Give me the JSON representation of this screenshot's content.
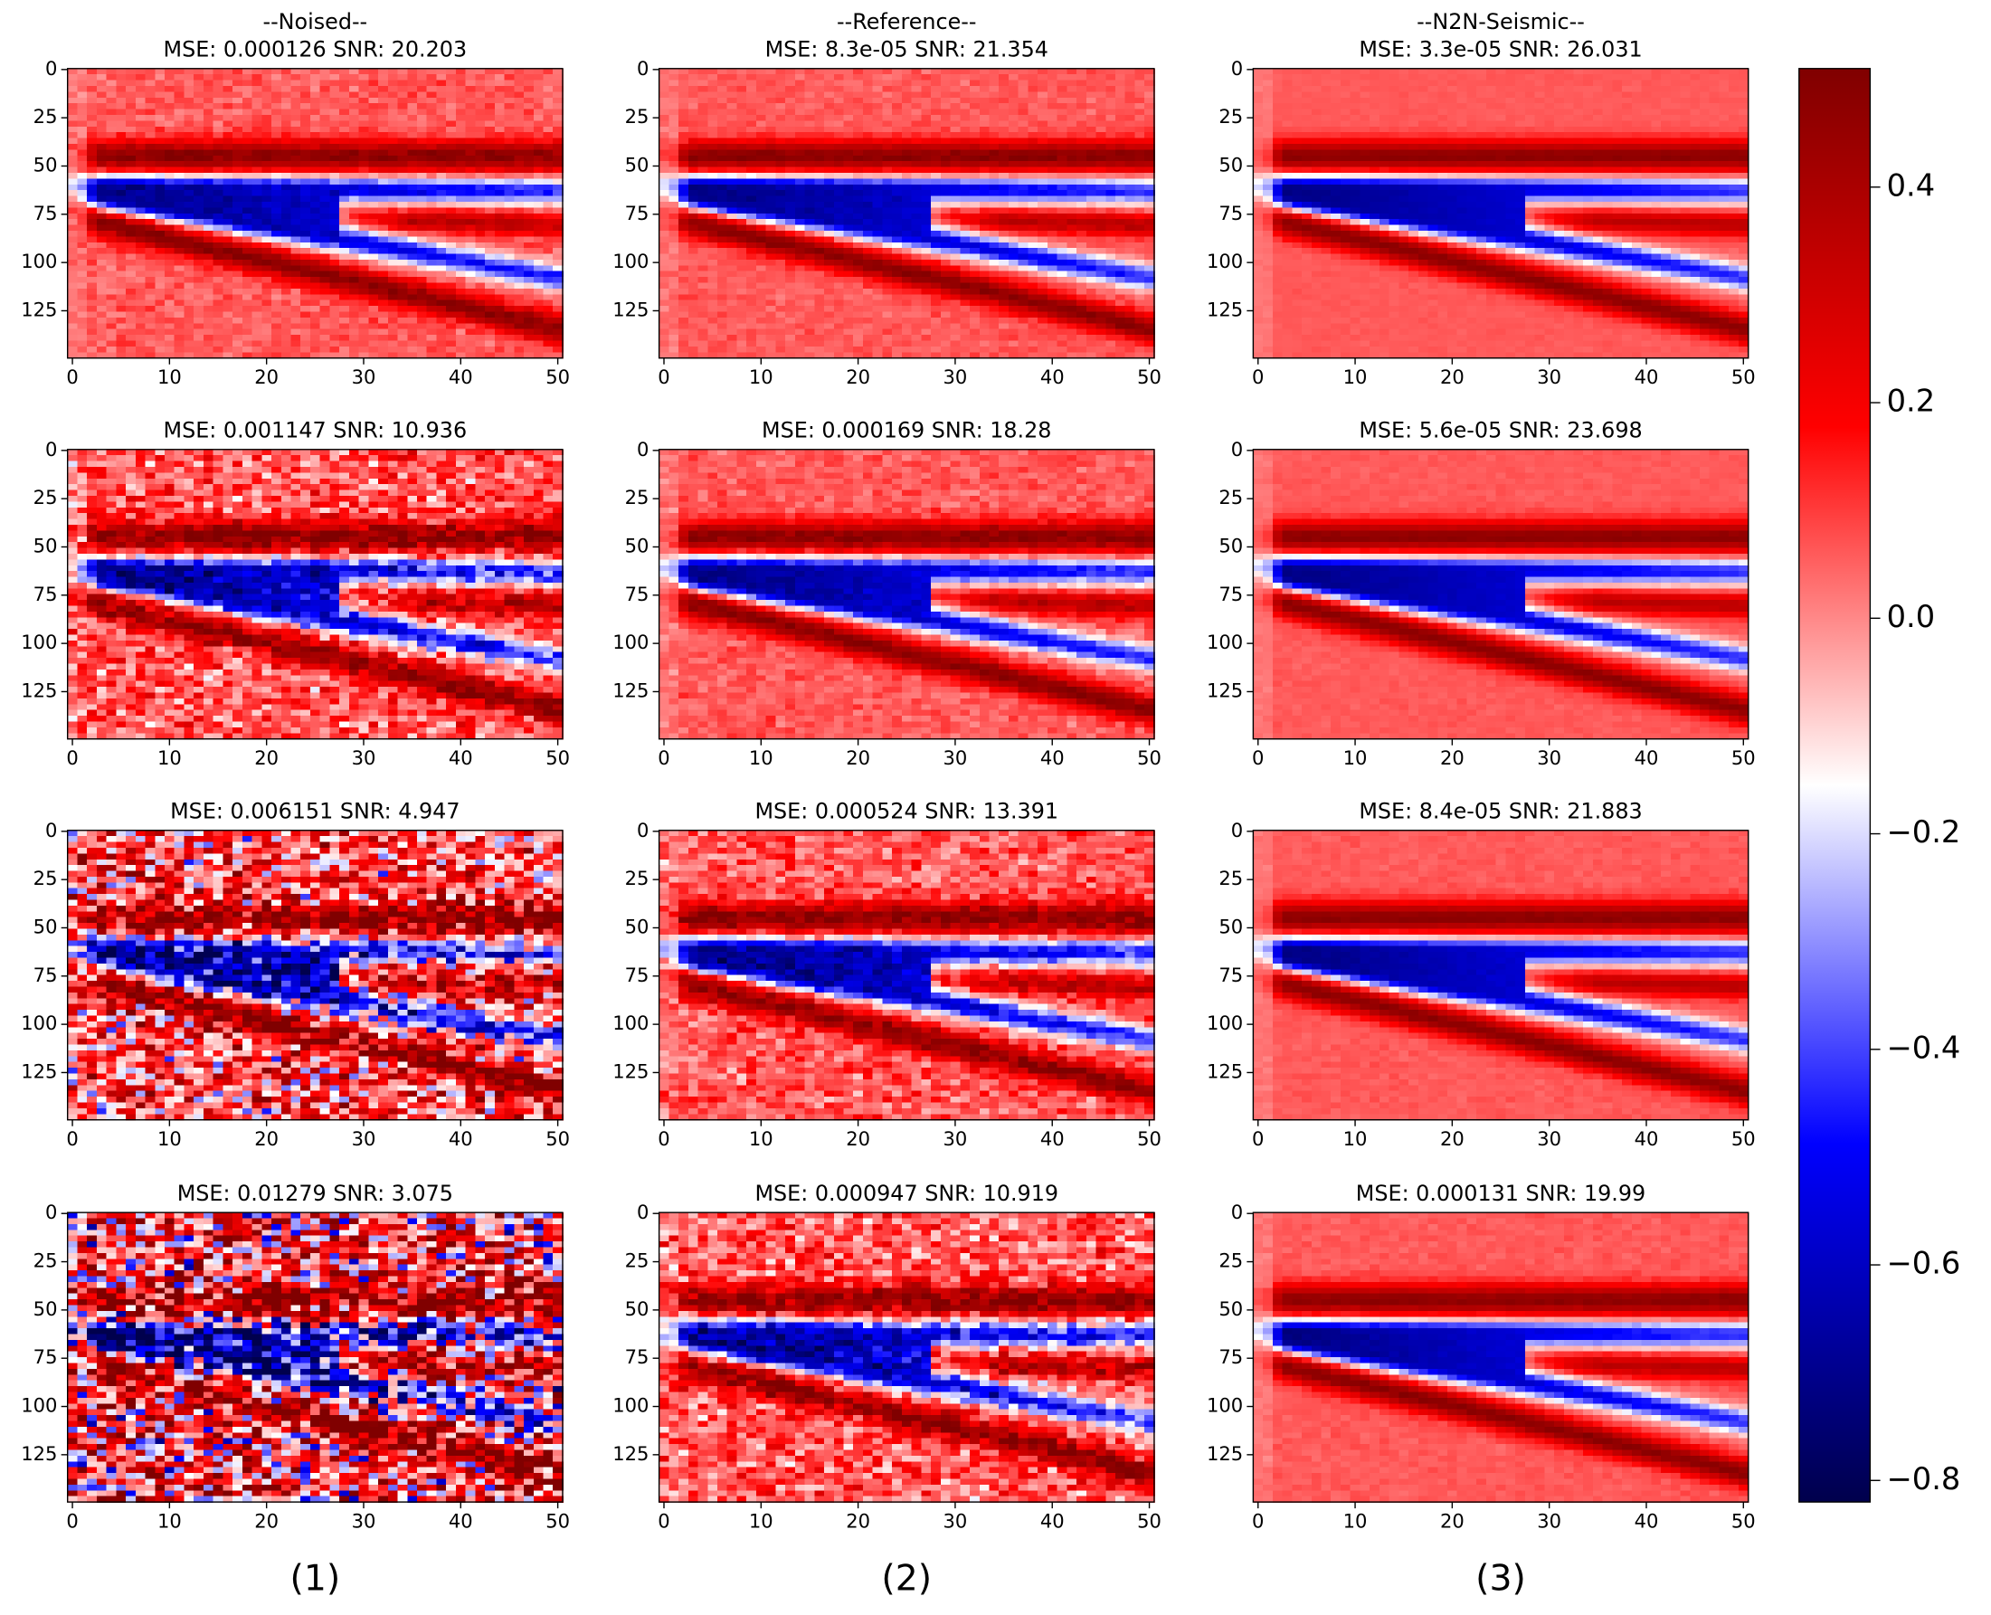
{
  "chart_data": [
    {
      "type": "heatmap",
      "title": "--Noised--",
      "subtitle": "MSE: 0.000126  SNR: 20.203",
      "xlim": [
        -0.5,
        50.5
      ],
      "ylim": [
        149.5,
        -0.5
      ],
      "xticks": [
        0,
        10,
        20,
        30,
        40,
        50
      ],
      "yticks": [
        0,
        25,
        50,
        75,
        100,
        125
      ]
    },
    {
      "type": "heatmap",
      "title": "--Reference--",
      "subtitle": "MSE: 8.3e-05  SNR: 21.354",
      "xlim": [
        -0.5,
        50.5
      ],
      "ylim": [
        149.5,
        -0.5
      ],
      "xticks": [
        0,
        10,
        20,
        30,
        40,
        50
      ],
      "yticks": [
        0,
        25,
        50,
        75,
        100,
        125
      ]
    },
    {
      "type": "heatmap",
      "title": "--N2N-Seismic--",
      "subtitle": "MSE: 3.3e-05  SNR: 26.031",
      "xlim": [
        -0.5,
        50.5
      ],
      "ylim": [
        149.5,
        -0.5
      ],
      "xticks": [
        0,
        10,
        20,
        30,
        40,
        50
      ],
      "yticks": [
        0,
        25,
        50,
        75,
        100,
        125
      ]
    },
    {
      "type": "heatmap",
      "subtitle": "MSE: 0.001147  SNR: 10.936",
      "xlim": [
        -0.5,
        50.5
      ],
      "ylim": [
        149.5,
        -0.5
      ],
      "xticks": [
        0,
        10,
        20,
        30,
        40,
        50
      ],
      "yticks": [
        0,
        25,
        50,
        75,
        100,
        125
      ]
    },
    {
      "type": "heatmap",
      "subtitle": "MSE: 0.000169  SNR: 18.28",
      "xlim": [
        -0.5,
        50.5
      ],
      "ylim": [
        149.5,
        -0.5
      ],
      "xticks": [
        0,
        10,
        20,
        30,
        40,
        50
      ],
      "yticks": [
        0,
        25,
        50,
        75,
        100,
        125
      ]
    },
    {
      "type": "heatmap",
      "subtitle": "MSE: 5.6e-05  SNR: 23.698",
      "xlim": [
        -0.5,
        50.5
      ],
      "ylim": [
        149.5,
        -0.5
      ],
      "xticks": [
        0,
        10,
        20,
        30,
        40,
        50
      ],
      "yticks": [
        0,
        25,
        50,
        75,
        100,
        125
      ]
    },
    {
      "type": "heatmap",
      "subtitle": "MSE: 0.006151  SNR: 4.947",
      "xlim": [
        -0.5,
        50.5
      ],
      "ylim": [
        149.5,
        -0.5
      ],
      "xticks": [
        0,
        10,
        20,
        30,
        40,
        50
      ],
      "yticks": [
        0,
        25,
        50,
        75,
        100,
        125
      ]
    },
    {
      "type": "heatmap",
      "subtitle": "MSE: 0.000524  SNR: 13.391",
      "xlim": [
        -0.5,
        50.5
      ],
      "ylim": [
        149.5,
        -0.5
      ],
      "xticks": [
        0,
        10,
        20,
        30,
        40,
        50
      ],
      "yticks": [
        0,
        25,
        50,
        75,
        100,
        125
      ]
    },
    {
      "type": "heatmap",
      "subtitle": "MSE: 8.4e-05  SNR: 21.883",
      "xlim": [
        -0.5,
        50.5
      ],
      "ylim": [
        149.5,
        -0.5
      ],
      "xticks": [
        0,
        10,
        20,
        30,
        40,
        50
      ],
      "yticks": [
        0,
        25,
        50,
        75,
        100,
        125
      ]
    },
    {
      "type": "heatmap",
      "subtitle": "MSE: 0.01279  SNR: 3.075",
      "xlim": [
        -0.5,
        50.5
      ],
      "ylim": [
        149.5,
        -0.5
      ],
      "xticks": [
        0,
        10,
        20,
        30,
        40,
        50
      ],
      "yticks": [
        0,
        25,
        50,
        75,
        100,
        125
      ]
    },
    {
      "type": "heatmap",
      "subtitle": "MSE: 0.000947  SNR: 10.919",
      "xlim": [
        -0.5,
        50.5
      ],
      "ylim": [
        149.5,
        -0.5
      ],
      "xticks": [
        0,
        10,
        20,
        30,
        40,
        50
      ],
      "yticks": [
        0,
        25,
        50,
        75,
        100,
        125
      ]
    },
    {
      "type": "heatmap",
      "subtitle": "MSE: 0.000131  SNR: 19.99",
      "xlim": [
        -0.5,
        50.5
      ],
      "ylim": [
        149.5,
        -0.5
      ],
      "xticks": [
        0,
        10,
        20,
        30,
        40,
        50
      ],
      "yticks": [
        0,
        25,
        50,
        75,
        100,
        125
      ]
    }
  ],
  "colorbar": {
    "clim": [
      -0.82,
      0.51
    ],
    "ticks": [
      0.4,
      0.2,
      0.0,
      -0.2,
      -0.4,
      -0.6,
      -0.8
    ],
    "tick_labels": [
      "0.4",
      "0.2",
      "0.0",
      "−0.2",
      "−0.4",
      "−0.6",
      "−0.8"
    ]
  },
  "panel_labels": [
    "(1)",
    "(2)",
    "(3)"
  ]
}
